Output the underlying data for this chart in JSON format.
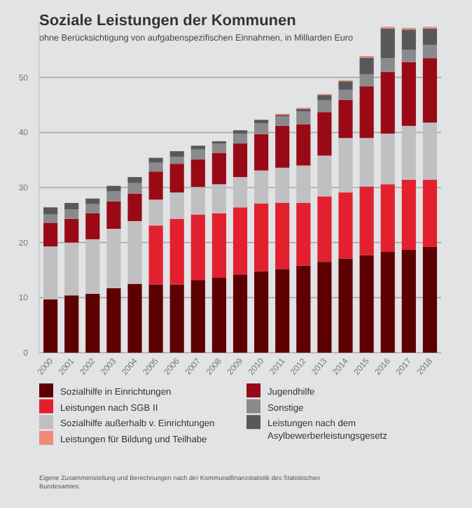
{
  "chart_data": {
    "type": "bar",
    "stacked": true,
    "title": "Soziale Leistungen der Kommunen",
    "subtitle": "ohne Berücksichtigung von aufgabenspezifischen Einnahmen, in Milliarden Euro",
    "categories": [
      "2000",
      "2001",
      "2002",
      "2003",
      "2004",
      "2005",
      "2006",
      "2007",
      "2008",
      "2009",
      "2010",
      "2011",
      "2012",
      "2013",
      "2014",
      "2015",
      "2016",
      "2017",
      "2018"
    ],
    "series": [
      {
        "name": "Sozialhilfe in Einrichtungen",
        "color": "#5c0000",
        "values": [
          9.7,
          10.4,
          10.7,
          11.7,
          12.5,
          12.4,
          12.4,
          13.2,
          13.6,
          14.2,
          14.8,
          15.2,
          15.8,
          16.5,
          17.1,
          17.7,
          18.3,
          18.7,
          19.2
        ]
      },
      {
        "name": "Leistungen nach SGB II",
        "color": "#e3202e",
        "values": [
          0,
          0,
          0,
          0,
          0,
          10.7,
          11.9,
          11.9,
          11.7,
          12.2,
          12.3,
          12.0,
          11.4,
          11.9,
          12.0,
          12.5,
          12.3,
          12.7,
          12.2
        ]
      },
      {
        "name": "Sozialhilfe außerhalb v. Einrichtungen",
        "color": "#c0c0c2",
        "values": [
          9.6,
          9.6,
          9.9,
          10.8,
          11.4,
          4.7,
          4.8,
          5.0,
          5.3,
          5.5,
          6.0,
          6.4,
          6.8,
          7.4,
          9.9,
          8.8,
          9.2,
          9.8,
          10.4
        ]
      },
      {
        "name": "Jugendhilfe",
        "color": "#9a0a16",
        "values": [
          4.3,
          4.3,
          4.7,
          5.0,
          5.0,
          5.1,
          5.2,
          5.0,
          5.7,
          6.1,
          6.6,
          7.6,
          7.5,
          7.9,
          6.9,
          9.4,
          11.2,
          11.6,
          11.7
        ]
      },
      {
        "name": "Sonstige",
        "color": "#8a8a8c",
        "values": [
          1.5,
          1.7,
          1.7,
          1.8,
          1.9,
          1.6,
          1.3,
          1.8,
          1.7,
          1.8,
          2.0,
          1.7,
          2.3,
          2.2,
          1.9,
          2.2,
          2.5,
          2.2,
          2.4
        ]
      },
      {
        "name": "Leistungen nach dem Asylbewerberleistungsgesetz",
        "color": "#58585a",
        "values": [
          1.3,
          1.2,
          1.0,
          1.0,
          1.1,
          0.9,
          1.0,
          0.7,
          0.4,
          0.6,
          0.6,
          0.3,
          0.5,
          0.9,
          1.5,
          3.0,
          5.4,
          3.7,
          3.0
        ]
      },
      {
        "name": "Leistungen für Bildung und Teilhabe",
        "color": "#ee8c78",
        "values": [
          0,
          0,
          0,
          0,
          0,
          0,
          0,
          0,
          0,
          0,
          0,
          0.2,
          0.2,
          0.2,
          0.2,
          0.3,
          0.3,
          0.3,
          0.3
        ]
      }
    ],
    "ylim": [
      0,
      60
    ],
    "yticks": [
      0,
      10,
      20,
      30,
      40,
      50
    ],
    "grid": "y",
    "legend": "bottom",
    "annotations": [
      "Eigene Zusammenstellung und Berechnungen nach der Kommunalfinanzstatistik des Statistischen Bundesamtes."
    ]
  }
}
